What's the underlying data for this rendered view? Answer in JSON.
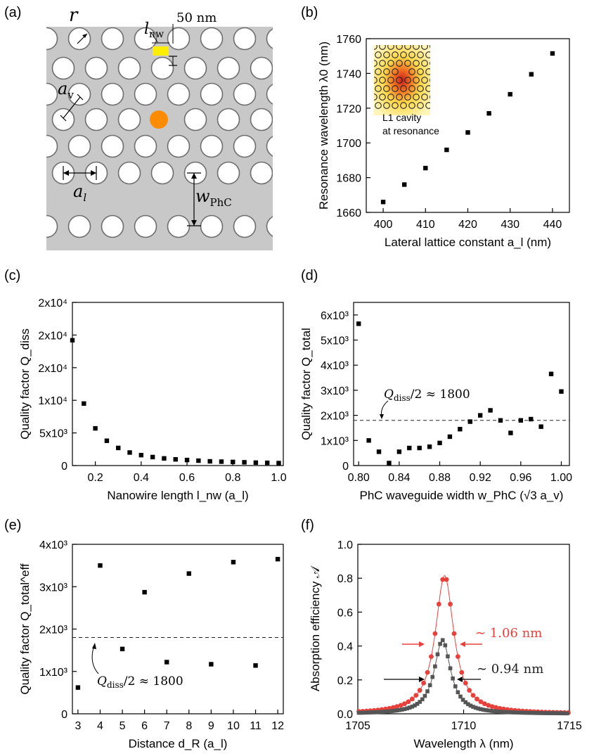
{
  "panels": {
    "a": {
      "label": "(a)",
      "r_label": "r",
      "lnw_label": "l",
      "lnw_sub": "nw",
      "dim_label": "50 nm",
      "av_label": "a",
      "av_sub": "v",
      "al_label": "a",
      "al_sub": "l",
      "w_label": "w",
      "w_sub": "PhC",
      "colors": {
        "slab": "#c8c8c8",
        "hole_stroke": "#6e6e6e",
        "nanowire": "#ffee00",
        "emitter": "#ff8c00"
      }
    },
    "b": {
      "label": "(b)",
      "inset_line1": "L1 cavity",
      "inset_line2": "at resonance"
    },
    "c": {
      "label": "(c)"
    },
    "d": {
      "label": "(d)",
      "annotation": "Q",
      "annotation_sub": "diss",
      "annotation_rest": "/2 ≈ 1800"
    },
    "e": {
      "label": "(e)",
      "annotation": "Q",
      "annotation_sub": "diss",
      "annotation_rest": "/2 ≈ 1800"
    },
    "f": {
      "label": "(f)",
      "red_width": "∼ 1.06 nm",
      "black_width": "∼ 0.94 nm",
      "colors": {
        "red": "#e8413c",
        "black": "#555555"
      }
    }
  },
  "chart_data": [
    {
      "id": "b",
      "type": "scatter",
      "xlabel": "Lateral lattice constant a_l (nm)",
      "ylabel": "Resonance wavelength λ0 (nm)",
      "xlim": [
        396,
        444
      ],
      "ylim": [
        1660,
        1760
      ],
      "xticks": [
        400,
        410,
        420,
        430,
        440
      ],
      "yticks": [
        1660,
        1680,
        1700,
        1720,
        1740,
        1760
      ],
      "x": [
        400,
        405,
        410,
        415,
        420,
        425,
        430,
        435,
        440
      ],
      "y": [
        1666,
        1676,
        1685.5,
        1696,
        1706,
        1717,
        1728,
        1739.5,
        1751.5
      ]
    },
    {
      "id": "c",
      "type": "scatter",
      "xlabel": "Nanowire length l_nw (a_l)",
      "ylabel": "Quality factor Q_diss",
      "xlim": [
        0.1,
        1.02
      ],
      "ylim": [
        0,
        25000
      ],
      "xticks": [
        0.2,
        0.4,
        0.6,
        0.8,
        1.0
      ],
      "ytick_values": [
        0,
        5000,
        10000,
        15000,
        20000,
        25000
      ],
      "ytick_labels": [
        "0",
        "5x10³",
        "1x10⁴",
        "2x10⁴",
        "2x10⁴",
        "2x10⁴"
      ],
      "x": [
        0.1,
        0.15,
        0.2,
        0.25,
        0.3,
        0.35,
        0.4,
        0.45,
        0.5,
        0.55,
        0.6,
        0.65,
        0.7,
        0.75,
        0.8,
        0.85,
        0.9,
        0.95,
        1.0
      ],
      "y": [
        19200,
        9500,
        5700,
        3800,
        2700,
        2000,
        1600,
        1300,
        1100,
        950,
        850,
        750,
        650,
        600,
        550,
        500,
        450,
        420,
        380
      ]
    },
    {
      "id": "d",
      "type": "scatter",
      "xlabel": "PhC waveguide width w_PhC (√3 a_v)",
      "ylabel": "Quality factor Q_total",
      "xlim": [
        0.795,
        1.008
      ],
      "ylim": [
        0,
        6500
      ],
      "xticks": [
        0.8,
        0.84,
        0.88,
        0.92,
        0.96,
        1.0
      ],
      "ytick_values": [
        0,
        1000,
        2000,
        3000,
        4000,
        5000,
        6000
      ],
      "ytick_labels": [
        "0",
        "1x10³",
        "2x10³",
        "3x10³",
        "4x10³",
        "5x10³",
        "6x10³"
      ],
      "reference_line": 1800,
      "x": [
        0.8,
        0.81,
        0.82,
        0.83,
        0.84,
        0.85,
        0.86,
        0.87,
        0.88,
        0.89,
        0.9,
        0.91,
        0.92,
        0.93,
        0.94,
        0.95,
        0.96,
        0.97,
        0.98,
        0.99,
        1.0
      ],
      "y": [
        5650,
        1000,
        550,
        100,
        550,
        700,
        700,
        750,
        900,
        1150,
        1450,
        1750,
        2000,
        2200,
        1800,
        1300,
        1800,
        1850,
        1550,
        3650,
        2950
      ]
    },
    {
      "id": "e",
      "type": "scatter",
      "xlabel": "Distance d_R (a_l)",
      "ylabel": "Quality factor Q_total^eff",
      "xlim": [
        2.75,
        12.25
      ],
      "ylim": [
        0,
        4000
      ],
      "xticks": [
        3,
        4,
        5,
        6,
        7,
        8,
        9,
        10,
        11,
        12
      ],
      "ytick_values": [
        0,
        1000,
        2000,
        3000,
        4000
      ],
      "ytick_labels": [
        "0",
        "1x10³",
        "2x10³",
        "3x10³",
        "4x10³"
      ],
      "reference_line": 1800,
      "x": [
        3,
        4,
        5,
        6,
        7,
        8,
        9,
        10,
        11,
        12
      ],
      "y": [
        620,
        3500,
        1530,
        2870,
        1220,
        3310,
        1170,
        3580,
        1140,
        3650
      ]
    },
    {
      "id": "f",
      "type": "line",
      "xlabel": "Wavelength λ (nm)",
      "ylabel": "Absorption efficiency 𝒜",
      "xlim": [
        1705,
        1715
      ],
      "ylim": [
        0,
        1.0
      ],
      "xticks": [
        1705,
        1710,
        1715
      ],
      "yticks": [
        0.0,
        0.2,
        0.4,
        0.6,
        0.8,
        1.0
      ],
      "series": [
        {
          "name": "red",
          "peak": 1709.1,
          "amplitude": 0.815,
          "fwhm": 1.06
        },
        {
          "name": "black",
          "peak": 1709.0,
          "amplitude": 0.435,
          "fwhm": 0.94
        }
      ]
    }
  ]
}
